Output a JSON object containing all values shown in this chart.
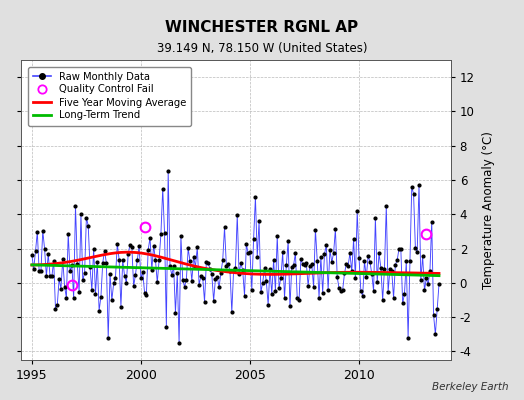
{
  "title": "WINCHESTER RGNL AP",
  "subtitle": "39.149 N, 78.150 W (United States)",
  "ylabel": "Temperature Anomaly (°C)",
  "watermark": "Berkeley Earth",
  "xlim": [
    1994.5,
    2014.2
  ],
  "ylim": [
    -4.5,
    13.0
  ],
  "yticks": [
    -4,
    -2,
    0,
    2,
    4,
    6,
    8,
    10,
    12
  ],
  "xticks": [
    1995,
    2000,
    2005,
    2010
  ],
  "bg_color": "#e0e0e0",
  "plot_bg_color": "#ffffff",
  "raw_line_color": "#4444ff",
  "raw_marker_color": "#000000",
  "ma_color": "#ff0000",
  "trend_color": "#00bb00",
  "qc_color": "#ff00ff",
  "seed": 42
}
